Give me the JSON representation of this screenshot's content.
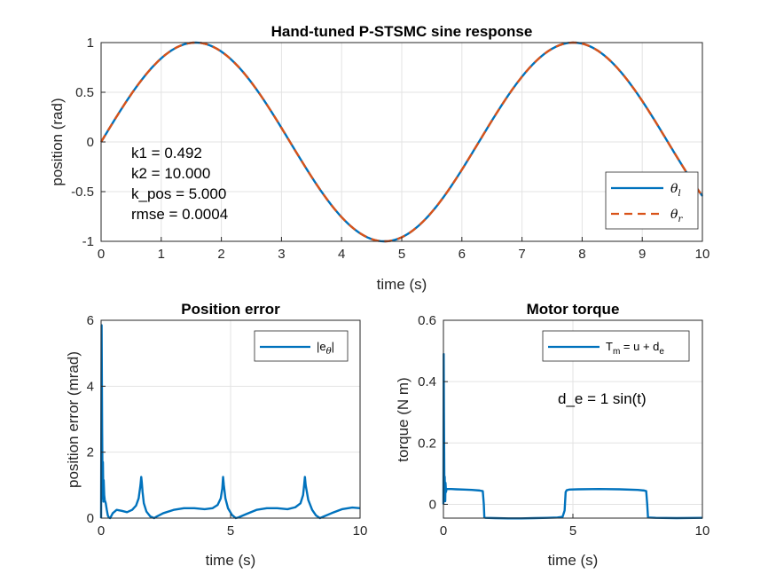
{
  "colors": {
    "blue": "#0072BD",
    "orange": "#D95319"
  },
  "chart_data": [
    {
      "type": "line",
      "title": "Hand-tuned P-STSMC sine response",
      "xlabel": "time (s)",
      "ylabel": "position (rad)",
      "xlim": [
        0,
        10
      ],
      "ylim": [
        -1,
        1
      ],
      "xticks": [
        0,
        1,
        2,
        3,
        4,
        5,
        6,
        7,
        8,
        9,
        10
      ],
      "yticks": [
        -1,
        -0.5,
        0,
        0.5,
        1
      ],
      "ytick_labels": [
        "-1",
        "-0.5",
        "0",
        "0.5",
        "1"
      ],
      "grid": true,
      "legend_position": "lower-right",
      "annotations": [
        "k1 = 0.492",
        "k2 = 10.000",
        "k_pos = 5.000",
        "rmse = 0.0004"
      ],
      "series": [
        {
          "name": "θl",
          "label_main": "θ",
          "label_sub": "l",
          "style": "solid",
          "function": "sin(t)",
          "x": [
            0,
            1.5708,
            3.1416,
            4.7124,
            6.2832,
            7.854,
            9.4248,
            10
          ],
          "values": [
            0,
            1,
            0,
            -1,
            0,
            1,
            0,
            -0.544
          ]
        },
        {
          "name": "θr",
          "label_main": "θ",
          "label_sub": "r",
          "style": "dashed",
          "function": "sin(t)",
          "x": [
            0,
            1.5708,
            3.1416,
            4.7124,
            6.2832,
            7.854,
            9.4248,
            10
          ],
          "values": [
            0,
            1,
            0,
            -1,
            0,
            1,
            0,
            -0.544
          ]
        }
      ]
    },
    {
      "type": "line",
      "title": "Position error",
      "xlabel": "time (s)",
      "ylabel": "position error (mrad)",
      "xlim": [
        0,
        10
      ],
      "ylim": [
        0,
        6
      ],
      "xticks": [
        0,
        5,
        10
      ],
      "yticks": [
        0,
        2,
        4,
        6
      ],
      "grid": true,
      "legend_position": "top-right",
      "series": [
        {
          "name": "|eθ|",
          "label_main": "|e",
          "label_sub": "θ",
          "label_tail": "|",
          "x": [
            0,
            0.02,
            0.04,
            0.06,
            0.07,
            0.09,
            0.1,
            0.12,
            0.14,
            0.18,
            0.22,
            0.26,
            0.3,
            0.35,
            0.45,
            0.6,
            0.8,
            1.0,
            1.2,
            1.35,
            1.45,
            1.52,
            1.55,
            1.57,
            1.6,
            1.65,
            1.75,
            1.9,
            2.05,
            2.15,
            2.4,
            2.8,
            3.2,
            3.6,
            4.0,
            4.3,
            4.5,
            4.62,
            4.68,
            4.71,
            4.74,
            4.8,
            4.9,
            5.05,
            5.2,
            5.3,
            5.6,
            6.0,
            6.4,
            6.8,
            7.2,
            7.5,
            7.7,
            7.8,
            7.84,
            7.87,
            7.9,
            8.0,
            8.15,
            8.3,
            8.45,
            8.6,
            8.9,
            9.3,
            9.7,
            10.0
          ],
          "values": [
            0,
            5.85,
            2.7,
            0.6,
            1.7,
            0.5,
            1.15,
            0.7,
            0.55,
            0.45,
            0.25,
            0.08,
            0.02,
            0.0,
            0.15,
            0.25,
            0.22,
            0.18,
            0.25,
            0.38,
            0.6,
            1.0,
            1.25,
            1.1,
            0.8,
            0.45,
            0.2,
            0.05,
            0.0,
            0.05,
            0.15,
            0.25,
            0.3,
            0.3,
            0.27,
            0.3,
            0.4,
            0.6,
            0.9,
            1.25,
            1.0,
            0.6,
            0.3,
            0.1,
            0.0,
            0.02,
            0.12,
            0.25,
            0.3,
            0.3,
            0.27,
            0.33,
            0.45,
            0.7,
            1.0,
            1.25,
            1.0,
            0.55,
            0.25,
            0.08,
            0.0,
            0.05,
            0.15,
            0.27,
            0.32,
            0.3
          ]
        }
      ]
    },
    {
      "type": "line",
      "title": "Motor torque",
      "xlabel": "time (s)",
      "ylabel": "torque (N m)",
      "xlim": [
        0,
        10
      ],
      "ylim": [
        -0.045,
        0.6
      ],
      "xticks": [
        0,
        5,
        10
      ],
      "yticks": [
        0,
        0.2,
        0.4,
        0.6
      ],
      "grid": true,
      "legend_position": "top-right",
      "annotations": [
        "d_e = 1 sin(t)"
      ],
      "series": [
        {
          "name": "Tm = u + de",
          "label_main": "T",
          "label_sub": "m",
          "label_mid": " = u + d",
          "label_sub2": "e",
          "x": [
            0,
            0.01,
            0.02,
            0.04,
            0.05,
            0.07,
            0.08,
            0.1,
            0.12,
            0.15,
            0.2,
            0.3,
            0.5,
            0.8,
            1.1,
            1.4,
            1.52,
            1.56,
            1.58,
            1.62,
            2.0,
            2.5,
            3.0,
            3.5,
            4.0,
            4.4,
            4.6,
            4.68,
            4.72,
            4.76,
            4.85,
            5.2,
            6.0,
            6.8,
            7.5,
            7.75,
            7.83,
            7.87,
            7.9,
            8.2,
            9.0,
            10.0
          ],
          "values": [
            0.0,
            0.49,
            0.3,
            0.02,
            0.09,
            0.01,
            0.07,
            0.04,
            0.05,
            0.05,
            0.05,
            0.05,
            0.049,
            0.048,
            0.047,
            0.045,
            0.043,
            0.0,
            -0.043,
            -0.044,
            -0.045,
            -0.046,
            -0.046,
            -0.045,
            -0.044,
            -0.043,
            -0.041,
            -0.02,
            0.04,
            0.046,
            0.048,
            0.049,
            0.05,
            0.049,
            0.047,
            0.045,
            0.043,
            0.0,
            -0.043,
            -0.044,
            -0.045,
            -0.044
          ]
        }
      ]
    }
  ]
}
